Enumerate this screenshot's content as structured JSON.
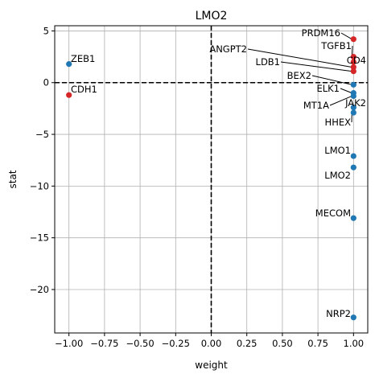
{
  "chart_data": {
    "type": "scatter",
    "title": "LMO2",
    "xlabel": "weight",
    "ylabel": "stat",
    "xlim": [
      -1.1,
      1.1
    ],
    "ylim": [
      -24.2,
      5.5
    ],
    "xticks": [
      -1.0,
      -0.75,
      -0.5,
      -0.25,
      0.0,
      0.25,
      0.5,
      0.75,
      1.0
    ],
    "xtick_labels": [
      "−1.00",
      "−0.75",
      "−0.50",
      "−0.25",
      "0.00",
      "0.25",
      "0.50",
      "0.75",
      "1.00"
    ],
    "yticks": [
      5,
      0,
      -5,
      -10,
      -15,
      -20
    ],
    "ytick_labels": [
      "5",
      "0",
      "−5",
      "−10",
      "−15",
      "−20"
    ],
    "grid": true,
    "reference_lines": {
      "x": 0,
      "y": 0
    },
    "colors": {
      "positive": "#d62728",
      "negative": "#1f77b4"
    },
    "points": [
      {
        "label": "ZEB1",
        "x": -1.0,
        "y": 1.8,
        "color": "#1f77b4"
      },
      {
        "label": "CDH1",
        "x": -1.0,
        "y": -1.2,
        "color": "#d62728"
      },
      {
        "label": "PRDM16",
        "x": 1.0,
        "y": 4.2,
        "color": "#d62728"
      },
      {
        "label": "TGFB1",
        "x": 1.0,
        "y": 2.5,
        "color": "#d62728"
      },
      {
        "label": "CD4",
        "x": 1.0,
        "y": 2.0,
        "color": "#d62728"
      },
      {
        "label": "ANGPT2",
        "x": 1.0,
        "y": 1.5,
        "color": "#d62728"
      },
      {
        "label": "LDB1",
        "x": 1.0,
        "y": 1.1,
        "color": "#d62728"
      },
      {
        "label": "BEX2",
        "x": 1.0,
        "y": -0.2,
        "color": "#1f77b4"
      },
      {
        "label": "ELK1",
        "x": 1.0,
        "y": -1.0,
        "color": "#1f77b4"
      },
      {
        "label": "MT1A",
        "x": 1.0,
        "y": -1.3,
        "color": "#1f77b4"
      },
      {
        "label": "JAK2",
        "x": 1.0,
        "y": -2.4,
        "color": "#1f77b4"
      },
      {
        "label": "HHEX",
        "x": 1.0,
        "y": -2.9,
        "color": "#1f77b4"
      },
      {
        "label": "LMO1",
        "x": 1.0,
        "y": -7.1,
        "color": "#1f77b4"
      },
      {
        "label": "LMO2",
        "x": 1.0,
        "y": -8.2,
        "color": "#1f77b4"
      },
      {
        "label": "MECOM",
        "x": 1.0,
        "y": -13.1,
        "color": "#1f77b4"
      },
      {
        "label": "NRP2",
        "x": 1.0,
        "y": -22.7,
        "color": "#1f77b4"
      }
    ]
  }
}
